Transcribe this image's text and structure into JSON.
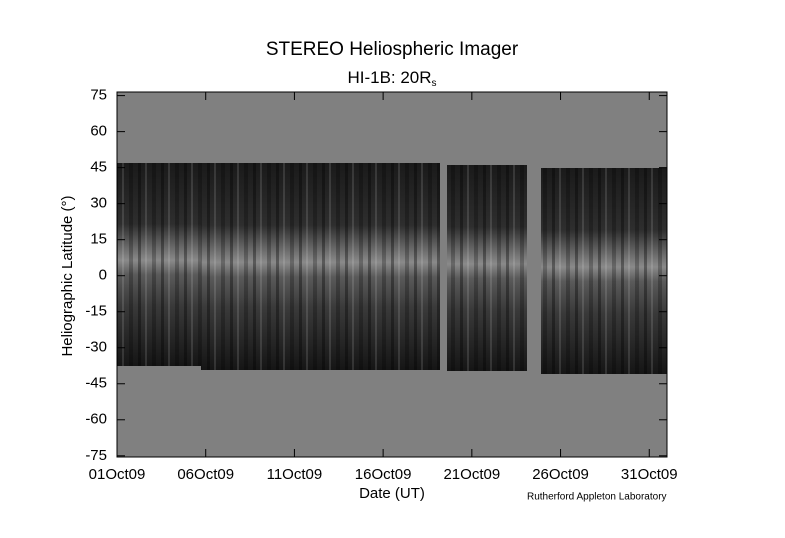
{
  "chart_data": {
    "type": "image",
    "title": "STEREO Heliospheric Imager",
    "subtitle": {
      "text": "HI-1B: 20R",
      "subscript": "s"
    },
    "xlabel": "Date (UT)",
    "ylabel": "Heliographic Latitude (°)",
    "credit": "Rutherford Appleton Laboratory",
    "xlim": [
      "2009-10-01",
      "2009-11-01"
    ],
    "xticks": [
      {
        "value": "2009-10-01",
        "label": "01Oct09"
      },
      {
        "value": "2009-10-06",
        "label": "06Oct09"
      },
      {
        "value": "2009-10-11",
        "label": "11Oct09"
      },
      {
        "value": "2009-10-16",
        "label": "16Oct09"
      },
      {
        "value": "2009-10-21",
        "label": "21Oct09"
      },
      {
        "value": "2009-10-26",
        "label": "26Oct09"
      },
      {
        "value": "2009-10-31",
        "label": "31Oct09"
      }
    ],
    "ylim": [
      -75.5,
      76.5
    ],
    "yticks": [
      75,
      60,
      45,
      30,
      15,
      0,
      -15,
      -30,
      -45,
      -60,
      -75
    ]
  }
}
